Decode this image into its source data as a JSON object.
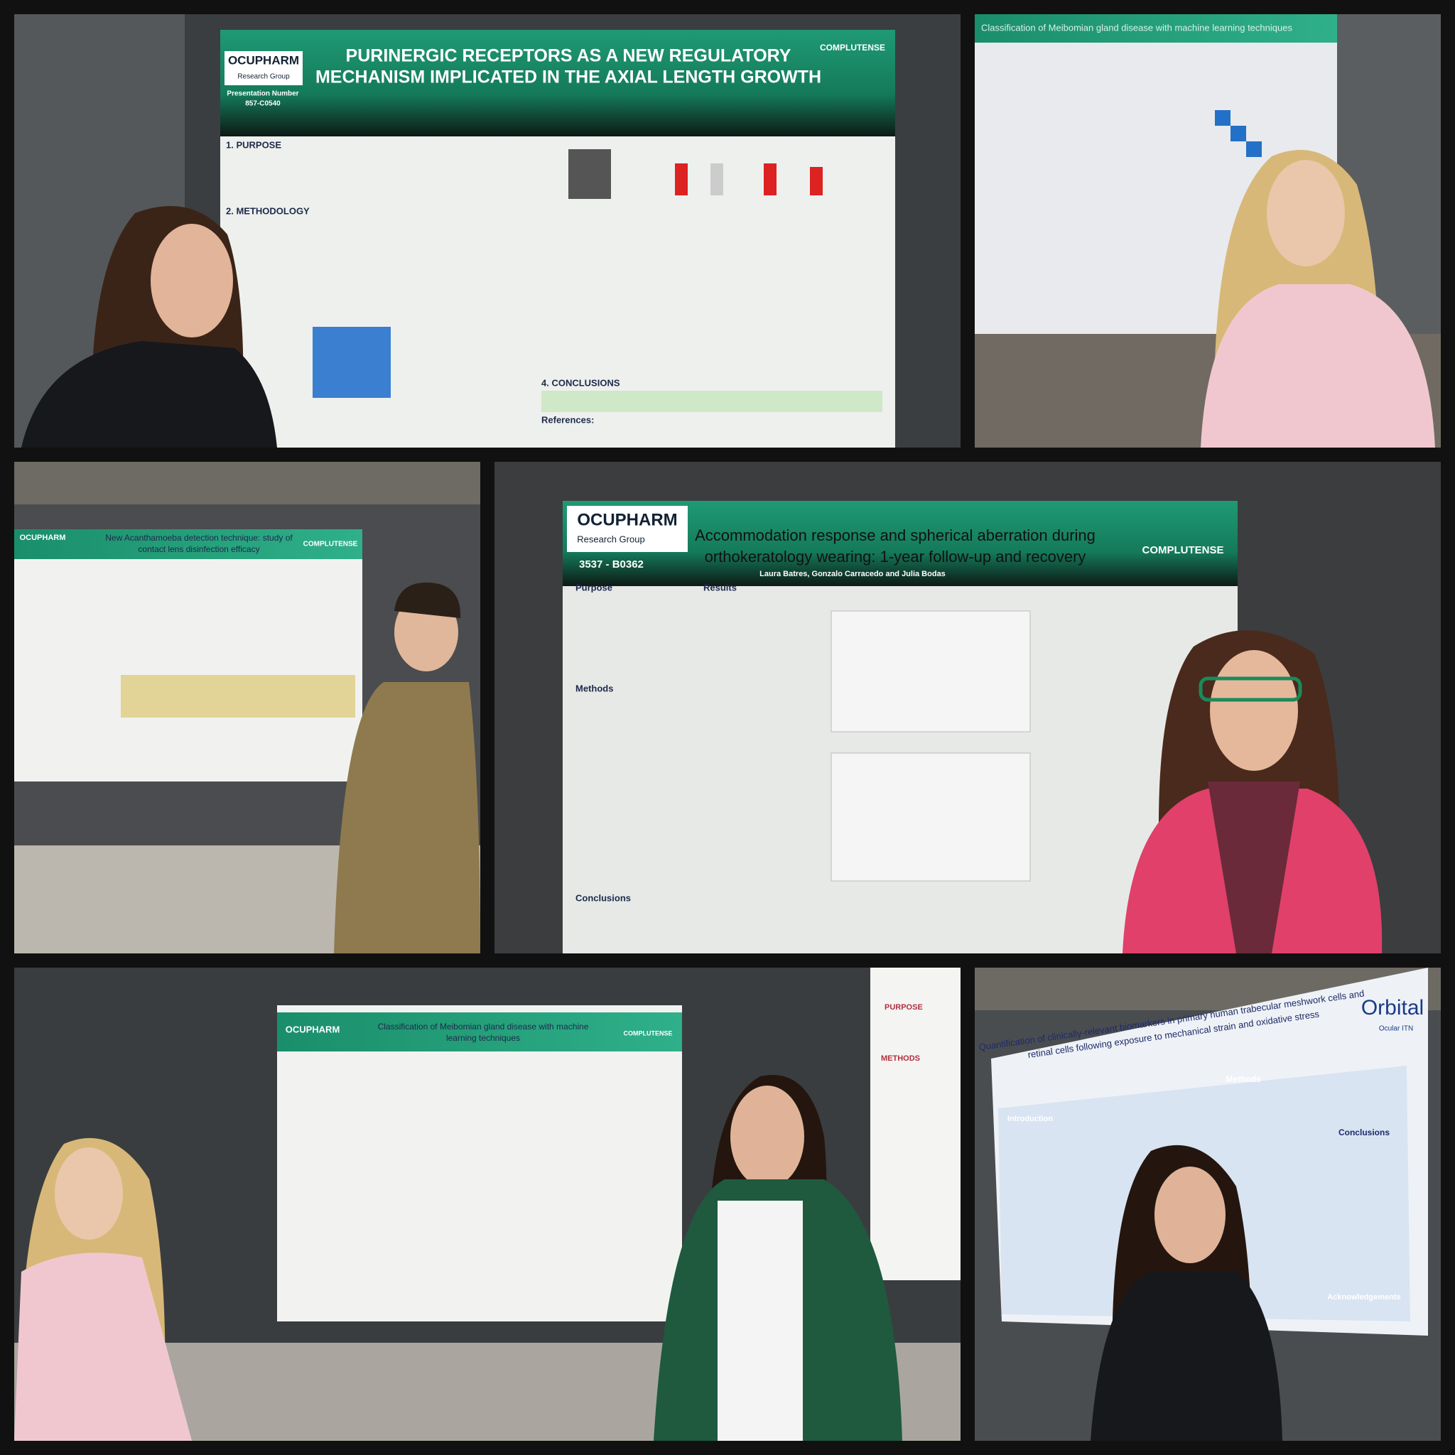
{
  "panels": [
    {
      "logo": "OCUPHARM",
      "logo_sub": "Research Group",
      "number_label": "Presentation Number",
      "number": "857-C0540",
      "title_lines": [
        "PURINERGIC RECEPTORS AS A NEW REGULATORY",
        "MECHANISM IMPLICATED IN THE AXIAL LENGTH GROWTH"
      ],
      "university": "COMPLUTENSE",
      "sections": [
        "1. PURPOSE",
        "2. METHODOLOGY",
        "4. CONCLUSIONS",
        "References:"
      ]
    },
    {
      "title": "Classification of Meibomian gland disease with machine learning techniques"
    },
    {
      "logo": "OCUPHARM",
      "title_lines": [
        "New Acanthamoeba detection technique: study of",
        "contact lens disinfection efficacy"
      ],
      "university": "COMPLUTENSE"
    },
    {
      "logo": "OCUPHARM",
      "logo_sub": "Research Group",
      "number": "3537 - B0362",
      "title_lines": [
        "Accommodation response and spherical aberration during",
        "orthokeratology wearing: 1-year follow-up and recovery"
      ],
      "authors": "Laura Batres, Gonzalo Carracedo and Julia Bodas",
      "university": "COMPLUTENSE",
      "sections": [
        "Purpose",
        "Results",
        "Methods",
        "Conclusions"
      ]
    },
    {
      "logo": "OCUPHARM",
      "title_lines": [
        "Classification of Meibomian gland disease with machine",
        "learning techniques"
      ],
      "university": "COMPLUTENSE",
      "side_sections": [
        "PURPOSE",
        "METHODS"
      ]
    },
    {
      "title_lines": [
        "Quantification of clinically-relevant biomarkers in primary human trabecular meshwork cells and",
        "retinal cells following exposure to mechanical strain and oxidative stress"
      ],
      "brand": "Orbital",
      "brand_sub": "Ocular ITN",
      "sections": [
        "Methods",
        "Introduction",
        "Conclusions",
        "Acknowledgements"
      ]
    }
  ]
}
